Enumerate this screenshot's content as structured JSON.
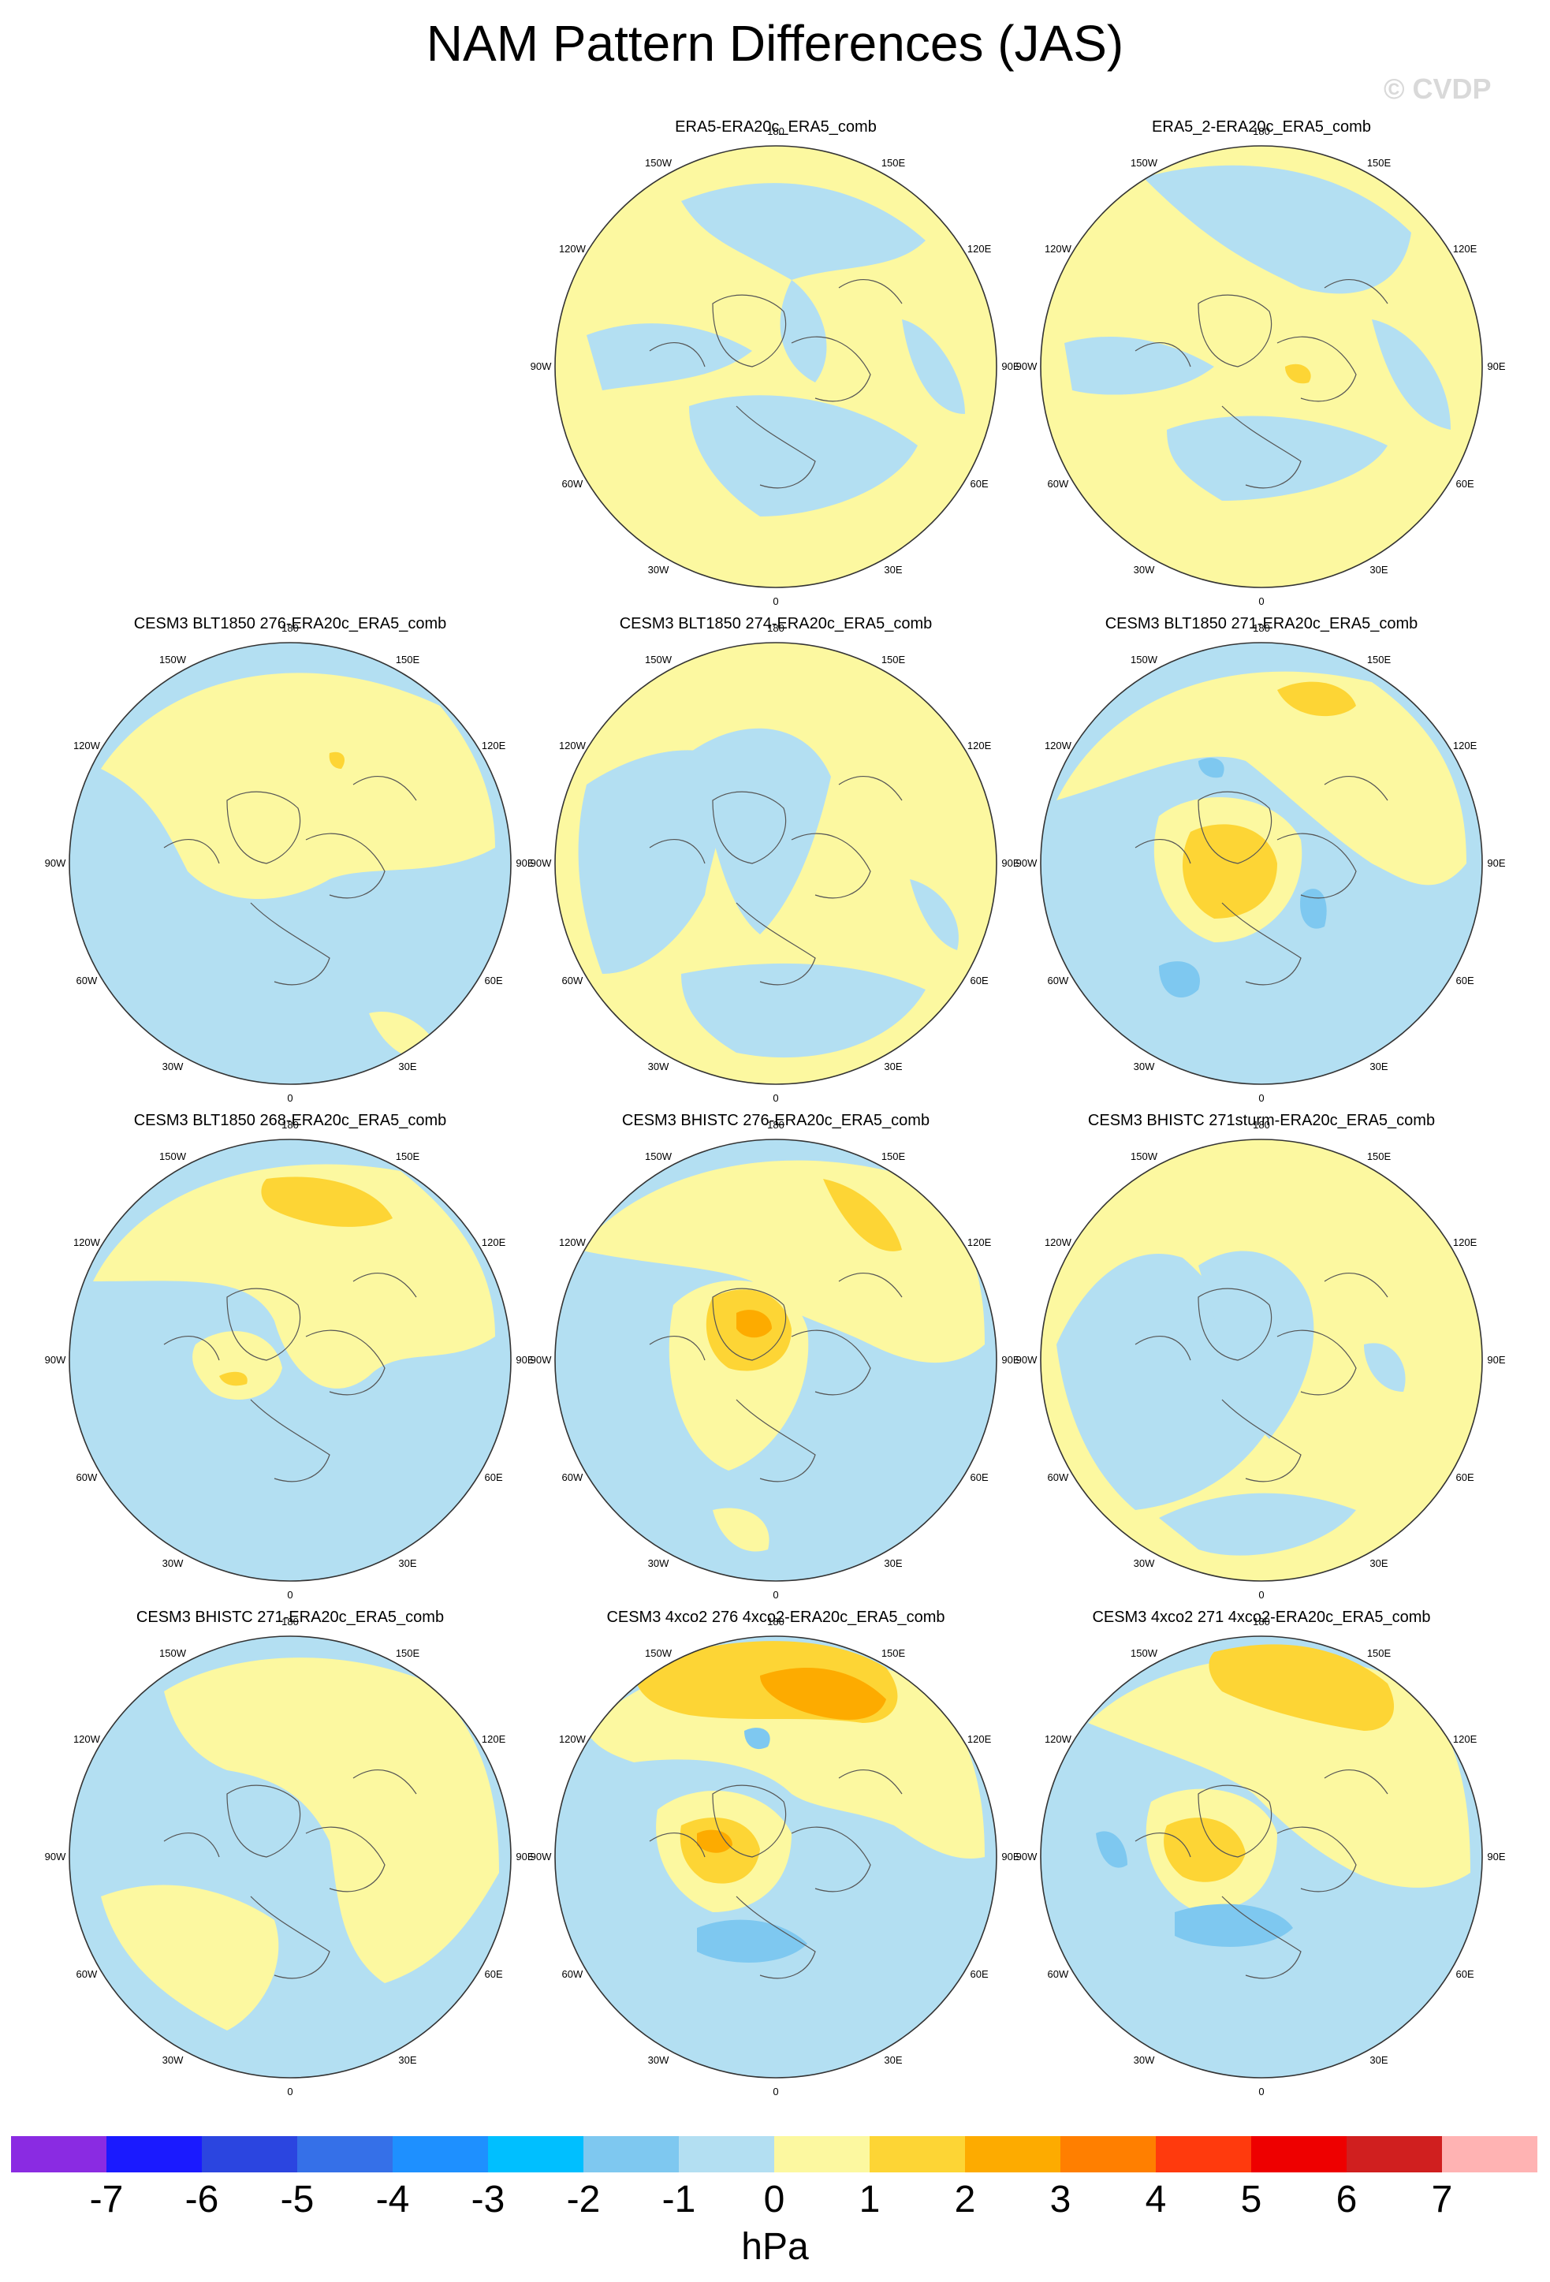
{
  "title": "NAM Pattern Differences (JAS)",
  "watermark": "© CVDP",
  "lon_labels": [
    "180",
    "150E",
    "120E",
    "90E",
    "60E",
    "30E",
    "0",
    "30W",
    "60W",
    "90W",
    "120W",
    "150W"
  ],
  "panels": [
    {
      "title": "ERA5-ERA20c_ERA5_comb",
      "row": 0,
      "col": 1
    },
    {
      "title": "ERA5_2-ERA20c_ERA5_comb",
      "row": 0,
      "col": 2
    },
    {
      "title": "CESM3 BLT1850 276-ERA20c_ERA5_comb",
      "row": 1,
      "col": 0
    },
    {
      "title": "CESM3 BLT1850 274-ERA20c_ERA5_comb",
      "row": 1,
      "col": 1
    },
    {
      "title": "CESM3 BLT1850 271-ERA20c_ERA5_comb",
      "row": 1,
      "col": 2
    },
    {
      "title": "CESM3 BLT1850 268-ERA20c_ERA5_comb",
      "row": 2,
      "col": 0
    },
    {
      "title": "CESM3 BHISTC 276-ERA20c_ERA5_comb",
      "row": 2,
      "col": 1
    },
    {
      "title": "CESM3 BHISTC 271sturm-ERA20c_ERA5_comb",
      "row": 2,
      "col": 2
    },
    {
      "title": "CESM3 BHISTC 271-ERA20c_ERA5_comb",
      "row": 3,
      "col": 0
    },
    {
      "title": "CESM3 4xco2 276 4xco2-ERA20c_ERA5_comb",
      "row": 3,
      "col": 1
    },
    {
      "title": "CESM3 4xco2 271 4xco2-ERA20c_ERA5_comb",
      "row": 3,
      "col": 2
    }
  ],
  "colorbar": {
    "colors": [
      "#8a2be2",
      "#1a1aff",
      "#2b45e0",
      "#3570e8",
      "#1e90ff",
      "#00bfff",
      "#7ec8f0",
      "#b3dff2",
      "#fcf8a0",
      "#fdd535",
      "#fdab00",
      "#ff7f00",
      "#ff3a0d",
      "#ee0000",
      "#d01f1f",
      "#ffb3b3"
    ],
    "labels": [
      "-7",
      "-6",
      "-5",
      "-4",
      "-3",
      "-2",
      "-1",
      "0",
      "1",
      "2",
      "3",
      "4",
      "5",
      "6",
      "7"
    ],
    "units": "hPa"
  }
}
